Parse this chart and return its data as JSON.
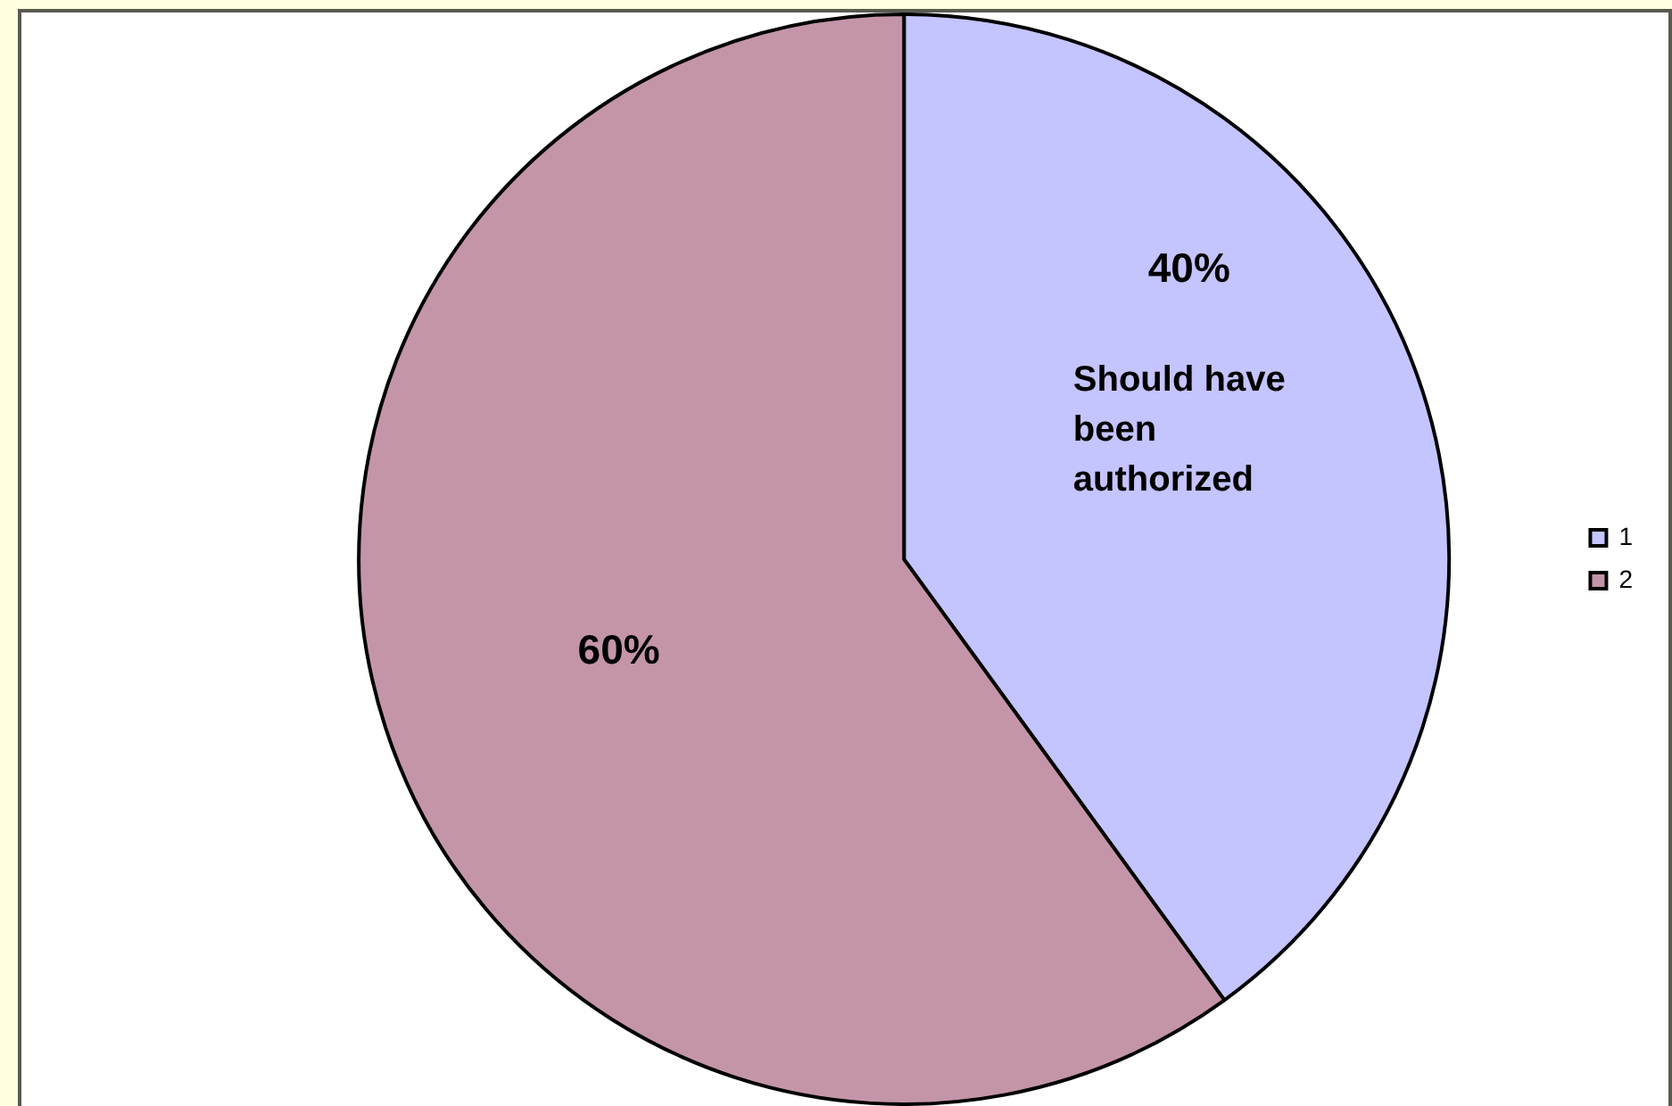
{
  "chart_data": {
    "type": "pie",
    "categories": [
      "1",
      "2"
    ],
    "values": [
      40,
      60
    ],
    "colors": [
      "#c4c4ff",
      "#c495a8"
    ],
    "value_labels": [
      "40%",
      "60%"
    ],
    "annotations": [
      "Should have been authorized"
    ],
    "legend": "right"
  }
}
